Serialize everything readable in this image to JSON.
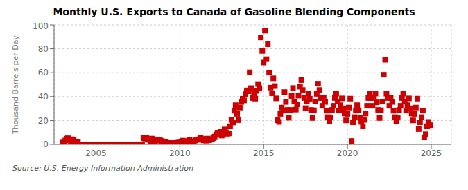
{
  "chart_data": {
    "type": "scatter",
    "title": "Monthly U.S. Exports to Canada of Gasoline Blending Components",
    "y_label": "Thousand Barrels per Day",
    "annotations": [
      "Source: U.S. Energy Information Administration"
    ],
    "color": "#cc0000",
    "marker": "square",
    "grid": true,
    "xlim": [
      2002.5,
      2026.2
    ],
    "xticks": [
      2005,
      2010,
      2015,
      2020,
      2025
    ],
    "ylim": [
      0,
      100
    ],
    "yticks": [
      0,
      20,
      40,
      60,
      80,
      100
    ],
    "x": [
      2003.0,
      2003.08,
      2003.17,
      2003.25,
      2003.33,
      2003.42,
      2003.5,
      2003.58,
      2003.67,
      2003.75,
      2003.83,
      2003.92,
      2004.0,
      2004.08,
      2004.17,
      2004.25,
      2004.33,
      2004.42,
      2004.5,
      2004.58,
      2004.67,
      2004.75,
      2004.83,
      2004.92,
      2005.0,
      2005.08,
      2005.17,
      2005.25,
      2005.33,
      2005.42,
      2005.5,
      2005.58,
      2005.67,
      2005.75,
      2005.83,
      2005.92,
      2006.0,
      2006.08,
      2006.17,
      2006.25,
      2006.33,
      2006.42,
      2006.5,
      2006.58,
      2006.67,
      2006.75,
      2006.83,
      2006.92,
      2007.0,
      2007.08,
      2007.17,
      2007.25,
      2007.33,
      2007.42,
      2007.5,
      2007.58,
      2007.67,
      2007.75,
      2007.83,
      2007.92,
      2008.0,
      2008.08,
      2008.17,
      2008.25,
      2008.33,
      2008.42,
      2008.5,
      2008.58,
      2008.67,
      2008.75,
      2008.83,
      2008.92,
      2009.0,
      2009.08,
      2009.17,
      2009.25,
      2009.33,
      2009.42,
      2009.5,
      2009.58,
      2009.67,
      2009.75,
      2009.83,
      2009.92,
      2010.0,
      2010.08,
      2010.17,
      2010.25,
      2010.33,
      2010.42,
      2010.5,
      2010.58,
      2010.67,
      2010.75,
      2010.83,
      2010.92,
      2011.0,
      2011.08,
      2011.17,
      2011.25,
      2011.33,
      2011.42,
      2011.5,
      2011.58,
      2011.67,
      2011.75,
      2011.83,
      2011.92,
      2012.0,
      2012.08,
      2012.17,
      2012.25,
      2012.33,
      2012.42,
      2012.5,
      2012.58,
      2012.67,
      2012.75,
      2012.83,
      2012.92,
      2013.0,
      2013.08,
      2013.17,
      2013.25,
      2013.33,
      2013.42,
      2013.5,
      2013.58,
      2013.67,
      2013.75,
      2013.83,
      2013.92,
      2014.0,
      2014.08,
      2014.17,
      2014.25,
      2014.33,
      2014.42,
      2014.5,
      2014.58,
      2014.67,
      2014.75,
      2014.83,
      2014.92,
      2015.0,
      2015.08,
      2015.17,
      2015.25,
      2015.33,
      2015.42,
      2015.5,
      2015.58,
      2015.67,
      2015.75,
      2015.83,
      2015.92,
      2016.0,
      2016.08,
      2016.17,
      2016.25,
      2016.33,
      2016.42,
      2016.5,
      2016.58,
      2016.67,
      2016.75,
      2016.83,
      2016.92,
      2017.0,
      2017.08,
      2017.17,
      2017.25,
      2017.33,
      2017.42,
      2017.5,
      2017.58,
      2017.67,
      2017.75,
      2017.83,
      2017.92,
      2018.0,
      2018.08,
      2018.17,
      2018.25,
      2018.33,
      2018.42,
      2018.5,
      2018.58,
      2018.67,
      2018.75,
      2018.83,
      2018.92,
      2019.0,
      2019.08,
      2019.17,
      2019.25,
      2019.33,
      2019.42,
      2019.5,
      2019.58,
      2019.67,
      2019.75,
      2019.83,
      2019.92,
      2020.0,
      2020.08,
      2020.17,
      2020.25,
      2020.33,
      2020.42,
      2020.5,
      2020.58,
      2020.67,
      2020.75,
      2020.83,
      2020.92,
      2021.0,
      2021.08,
      2021.17,
      2021.25,
      2021.33,
      2021.42,
      2021.5,
      2021.58,
      2021.67,
      2021.75,
      2021.83,
      2021.92,
      2022.0,
      2022.08,
      2022.17,
      2022.25,
      2022.33,
      2022.42,
      2022.5,
      2022.58,
      2022.67,
      2022.75,
      2022.83,
      2022.92,
      2023.0,
      2023.08,
      2023.17,
      2023.25,
      2023.33,
      2023.42,
      2023.5,
      2023.58,
      2023.67,
      2023.75,
      2023.83,
      2023.92,
      2024.0,
      2024.08,
      2024.17,
      2024.25,
      2024.33,
      2024.42,
      2024.5,
      2024.58,
      2024.67,
      2024.75,
      2024.83,
      2024.92
    ],
    "values": [
      2.1,
      1.5,
      3.2,
      4.8,
      5.1,
      3.9,
      2.8,
      4.2,
      3.5,
      2.1,
      1.8,
      2.3,
      0.0,
      0.0,
      0.0,
      0.0,
      0.0,
      0.0,
      0.0,
      0.0,
      0.0,
      0.0,
      0.0,
      0.0,
      0.0,
      0.0,
      0.0,
      0.0,
      0.0,
      0.0,
      0.0,
      0.0,
      0.0,
      0.0,
      0.0,
      0.0,
      0.0,
      0.0,
      0.0,
      0.0,
      0.0,
      0.0,
      0.0,
      0.0,
      0.0,
      0.0,
      0.0,
      0.0,
      0.0,
      0.0,
      0.0,
      0.0,
      0.0,
      0.0,
      0.0,
      0.0,
      0.0,
      0.0,
      5.2,
      4.8,
      5.5,
      4.3,
      3.8,
      2.9,
      4.8,
      3.1,
      2.5,
      3.2,
      4.1,
      3.7,
      3.2,
      2.8,
      2.1,
      1.8,
      2.3,
      1.5,
      0.8,
      1.2,
      0.5,
      0.3,
      1.2,
      0.8,
      1.5,
      2.1,
      1.8,
      2.3,
      3.1,
      1.5,
      2.5,
      1.2,
      2.8,
      3.5,
      2.1,
      1.8,
      2.5,
      3.2,
      4.1,
      3.8,
      4.2,
      5.8,
      4.5,
      3.3,
      4.2,
      3.1,
      4.8,
      3.5,
      3.9,
      4.1,
      5.2,
      6.5,
      8.3,
      9.8,
      8.2,
      10.5,
      7.3,
      8.8,
      12.5,
      10.2,
      8.8,
      9.1,
      15.2,
      20.5,
      18.3,
      28.1,
      32.8,
      25.5,
      20.3,
      30.8,
      35.5,
      38.2,
      36.8,
      42.1,
      45.2,
      44.5,
      60.3,
      47.1,
      38.8,
      42.5,
      38.3,
      44.8,
      50.5,
      47.2,
      89.5,
      78.2,
      68.5,
      95.2,
      71.3,
      83.8,
      60.1,
      47.5,
      42.8,
      55.3,
      48.8,
      38.5,
      20.2,
      18.8,
      25.5,
      30.8,
      28.3,
      43.8,
      35.5,
      28.8,
      22.3,
      28.8,
      40.5,
      47.2,
      35.8,
      29.1,
      33.5,
      40.8,
      48.3,
      53.8,
      45.5,
      38.8,
      30.3,
      35.8,
      42.5,
      38.2,
      28.8,
      22.1,
      28.5,
      35.8,
      42.3,
      50.8,
      45.5,
      38.8,
      32.3,
      38.8,
      35.5,
      28.2,
      22.8,
      19.1,
      22.5,
      28.8,
      32.3,
      38.8,
      42.5,
      35.8,
      28.3,
      32.8,
      38.5,
      30.2,
      25.8,
      20.1,
      25.5,
      30.8,
      38.3,
      2.8,
      18.5,
      22.8,
      28.3,
      32.8,
      28.5,
      22.2,
      18.8,
      15.1,
      20.5,
      25.8,
      32.3,
      38.8,
      42.5,
      38.8,
      32.3,
      38.8,
      42.5,
      35.2,
      28.8,
      22.1,
      28.5,
      35.8,
      58.3,
      70.8,
      42.5,
      38.8,
      32.3,
      38.8,
      35.5,
      28.2,
      22.8,
      19.1,
      22.5,
      28.8,
      32.3,
      38.8,
      42.5,
      35.8,
      28.3,
      32.8,
      38.5,
      30.2,
      25.8,
      20.1,
      25.5,
      30.8,
      38.3,
      12.8,
      18.5,
      22.8,
      28.3,
      5.8,
      8.5,
      15.2,
      18.8,
      16.1
    ]
  }
}
